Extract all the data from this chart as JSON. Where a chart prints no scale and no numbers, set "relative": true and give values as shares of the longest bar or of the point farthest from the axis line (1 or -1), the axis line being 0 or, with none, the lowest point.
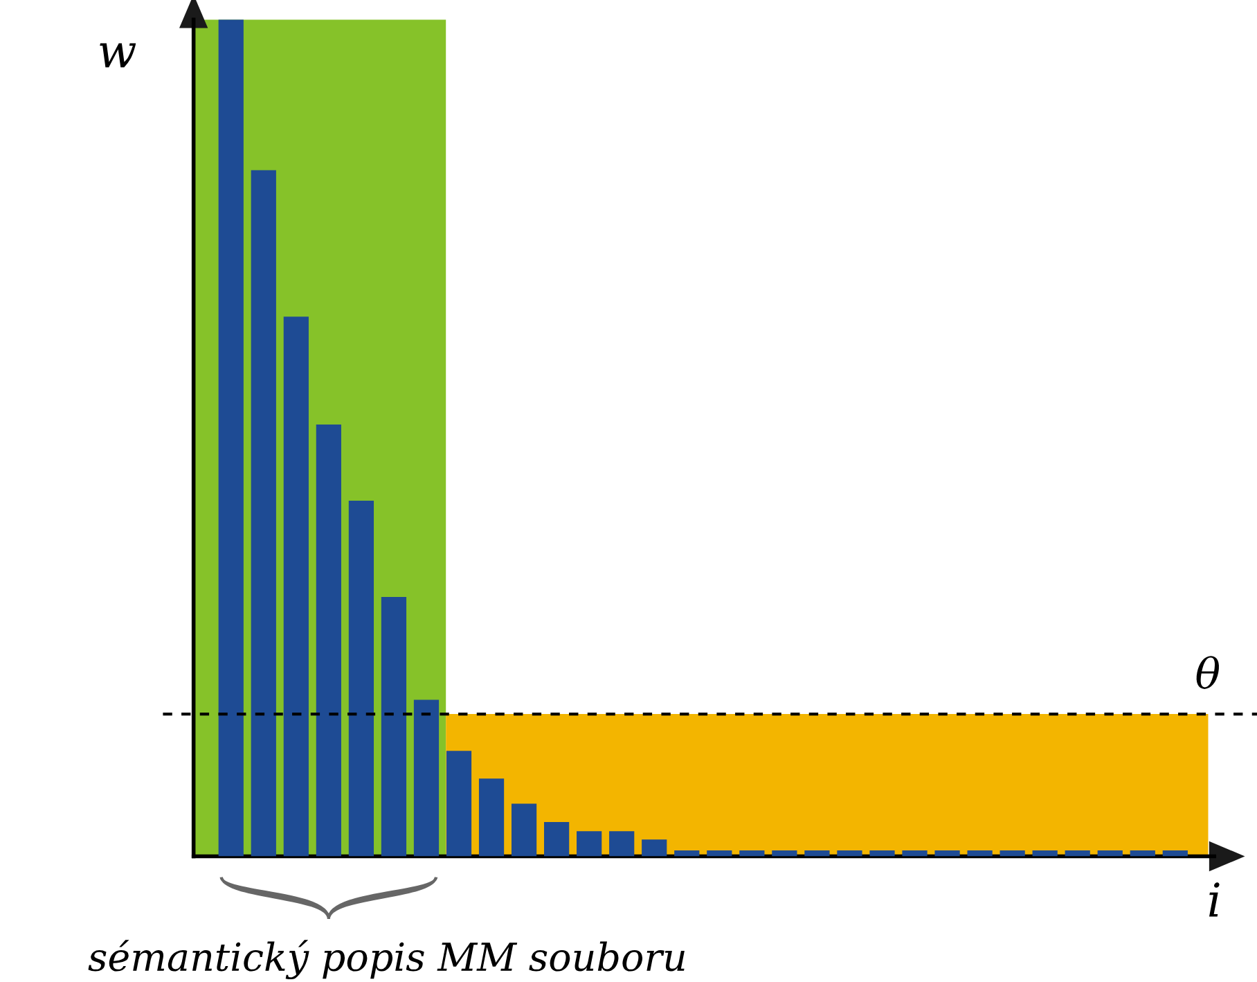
{
  "chart_data": {
    "type": "bar",
    "relative": true,
    "xlabel": "i",
    "ylabel": "w",
    "categories": [
      null,
      null,
      null,
      null,
      null,
      null,
      null,
      null,
      null,
      null,
      null,
      null,
      null,
      null,
      null,
      null,
      null,
      null,
      null,
      null,
      null,
      null,
      null,
      null,
      null,
      null,
      null,
      null,
      null,
      null
    ],
    "values": [
      1,
      0.82,
      0.645,
      0.516,
      0.425,
      0.31,
      0.187,
      0.126,
      0.093,
      0.063,
      0.041,
      0.03,
      0.03,
      0.02,
      0.007,
      0.007,
      0.007,
      0.007,
      0.007,
      0.007,
      0.007,
      0.007,
      0.007,
      0.007,
      0.007,
      0.007,
      0.007,
      0.007,
      0.007,
      0.007
    ],
    "color": "#1e4b94",
    "ref_lines": [
      {
        "axis": "y",
        "value": 0.17,
        "label": "θ",
        "line_style": "dashed",
        "color": "#000000"
      }
    ],
    "bands": [
      {
        "axis": "y",
        "from": 0,
        "to": 0.17,
        "color": "#f3b500"
      }
    ],
    "annotations": [
      "sémantický popis MM souboru"
    ],
    "legend": false
  }
}
